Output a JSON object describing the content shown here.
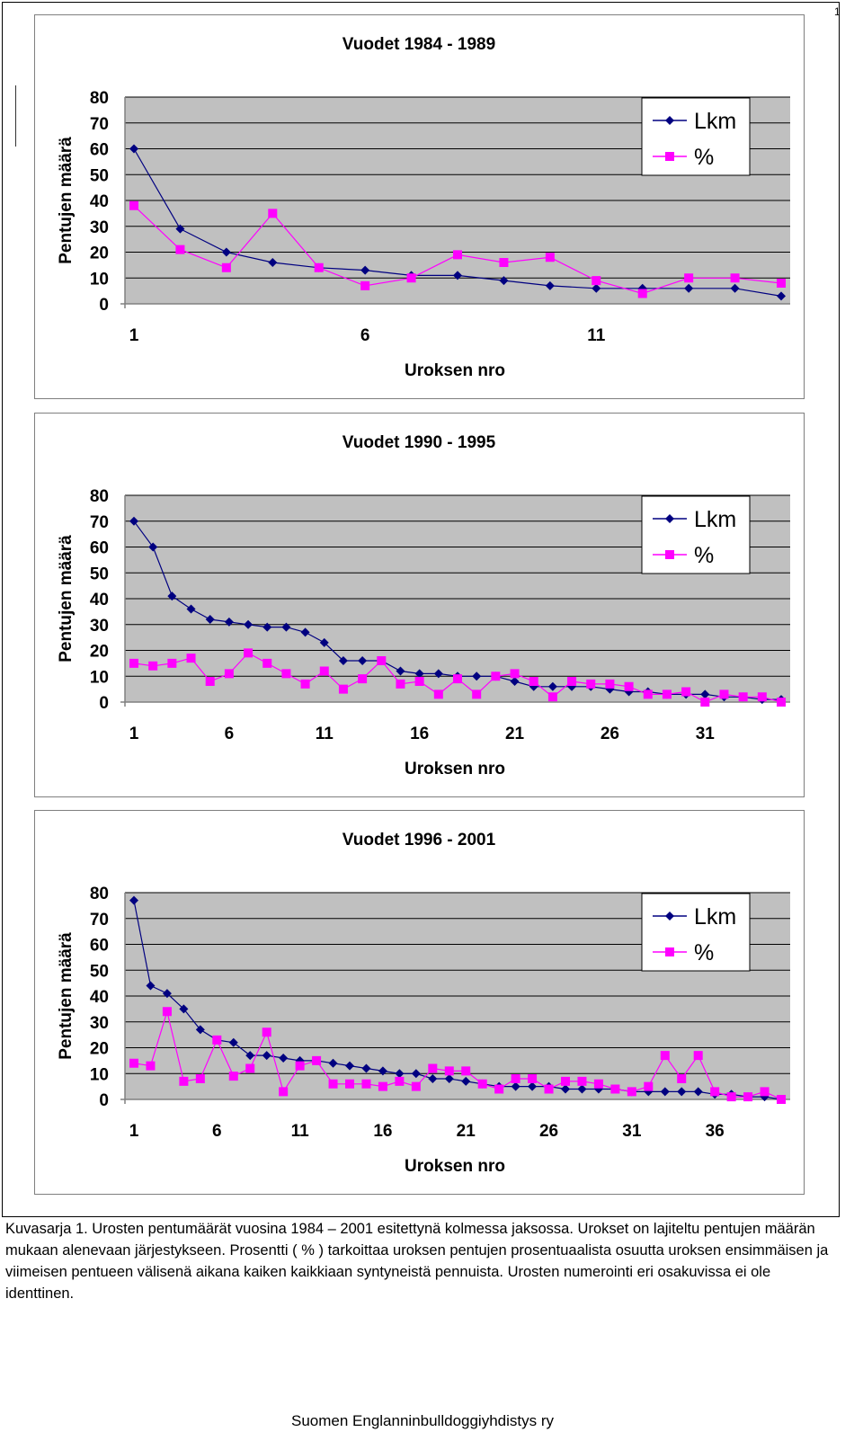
{
  "page": {
    "corner_mark": "1",
    "caption": "Kuvasarja  1. Urosten pentumäärät vuosina 1984 – 2001 esitettynä kolmessa jaksossa. Urokset on lajiteltu pentujen määrän mukaan alenevaan järjestykseen. Prosentti ( % ) tarkoittaa uroksen pentujen prosentuaalista osuutta uroksen ensimmäisen ja viimeisen pentueen välisenä aikana kaiken kaikkiaan syntyneistä pennuista. Urosten numerointi eri osakuvissa ei ole identtinen.",
    "footer": "Suomen Englanninbulldoggiyhdistys ry"
  },
  "colors": {
    "lkm": "#000080",
    "pct": "#ff00ff",
    "plot_bg": "#c0c0c0",
    "grid": "#000000"
  },
  "chart_data": [
    {
      "type": "line",
      "title": "Vuodet 1984 - 1989",
      "xlabel": "Uroksen nro",
      "ylabel": "Pentujen määrä",
      "ylim": [
        0,
        80
      ],
      "yticks": [
        "0",
        "10",
        "20",
        "30",
        "40",
        "50",
        "60",
        "70",
        "80"
      ],
      "xticks": [
        "1",
        "6",
        "11"
      ],
      "x": [
        1,
        2,
        3,
        4,
        5,
        6,
        7,
        8,
        9,
        10,
        11,
        12,
        13,
        14,
        15
      ],
      "legend": "top-right",
      "grid": true,
      "series": [
        {
          "name": "Lkm",
          "values": [
            60,
            29,
            20,
            16,
            14,
            13,
            11,
            11,
            9,
            7,
            6,
            6,
            6,
            6,
            3
          ]
        },
        {
          "name": "%",
          "values": [
            38,
            21,
            14,
            35,
            14,
            7,
            10,
            19,
            16,
            18,
            9,
            4,
            10,
            10,
            8
          ]
        }
      ]
    },
    {
      "type": "line",
      "title": "Vuodet 1990 - 1995",
      "xlabel": "Uroksen nro",
      "ylabel": "Pentujen määrä",
      "ylim": [
        0,
        80
      ],
      "yticks": [
        "0",
        "10",
        "20",
        "30",
        "40",
        "50",
        "60",
        "70",
        "80"
      ],
      "xticks": [
        "1",
        "6",
        "11",
        "16",
        "21",
        "26",
        "31"
      ],
      "x": [
        1,
        2,
        3,
        4,
        5,
        6,
        7,
        8,
        9,
        10,
        11,
        12,
        13,
        14,
        15,
        16,
        17,
        18,
        19,
        20,
        21,
        22,
        23,
        24,
        25,
        26,
        27,
        28,
        29,
        30,
        31,
        32,
        33,
        34,
        35
      ],
      "legend": "top-right",
      "grid": true,
      "series": [
        {
          "name": "Lkm",
          "values": [
            70,
            60,
            41,
            36,
            32,
            31,
            30,
            29,
            29,
            27,
            23,
            16,
            16,
            16,
            12,
            11,
            11,
            10,
            10,
            10,
            8,
            6,
            6,
            6,
            6,
            5,
            4,
            4,
            3,
            3,
            3,
            2,
            2,
            1,
            1
          ]
        },
        {
          "name": "%",
          "values": [
            15,
            14,
            15,
            17,
            8,
            11,
            19,
            15,
            11,
            7,
            12,
            5,
            9,
            16,
            7,
            8,
            3,
            9,
            3,
            10,
            11,
            8,
            2,
            8,
            7,
            7,
            6,
            3,
            3,
            4,
            0,
            3,
            2,
            2,
            0
          ]
        }
      ]
    },
    {
      "type": "line",
      "title": "Vuodet 1996 - 2001",
      "xlabel": "Uroksen nro",
      "ylabel": "Pentujen määrä",
      "ylim": [
        0,
        80
      ],
      "yticks": [
        "0",
        "10",
        "20",
        "30",
        "40",
        "50",
        "60",
        "70",
        "80"
      ],
      "xticks": [
        "1",
        "6",
        "11",
        "16",
        "21",
        "26",
        "31",
        "36"
      ],
      "x": [
        1,
        2,
        3,
        4,
        5,
        6,
        7,
        8,
        9,
        10,
        11,
        12,
        13,
        14,
        15,
        16,
        17,
        18,
        19,
        20,
        21,
        22,
        23,
        24,
        25,
        26,
        27,
        28,
        29,
        30,
        31,
        32,
        33,
        34,
        35,
        36,
        37,
        38,
        39,
        40
      ],
      "legend": "top-right",
      "grid": true,
      "series": [
        {
          "name": "Lkm",
          "values": [
            77,
            44,
            41,
            35,
            27,
            23,
            22,
            17,
            17,
            16,
            15,
            15,
            14,
            13,
            12,
            11,
            10,
            10,
            8,
            8,
            7,
            6,
            5,
            5,
            5,
            5,
            4,
            4,
            4,
            4,
            3,
            3,
            3,
            3,
            3,
            2,
            2,
            1,
            1,
            0
          ]
        },
        {
          "name": "%",
          "values": [
            14,
            13,
            34,
            7,
            8,
            23,
            9,
            12,
            26,
            3,
            13,
            15,
            6,
            6,
            6,
            5,
            7,
            5,
            12,
            11,
            11,
            6,
            4,
            8,
            8,
            4,
            7,
            7,
            6,
            4,
            3,
            5,
            17,
            8,
            17,
            3,
            1,
            1,
            3,
            0
          ]
        }
      ]
    }
  ]
}
